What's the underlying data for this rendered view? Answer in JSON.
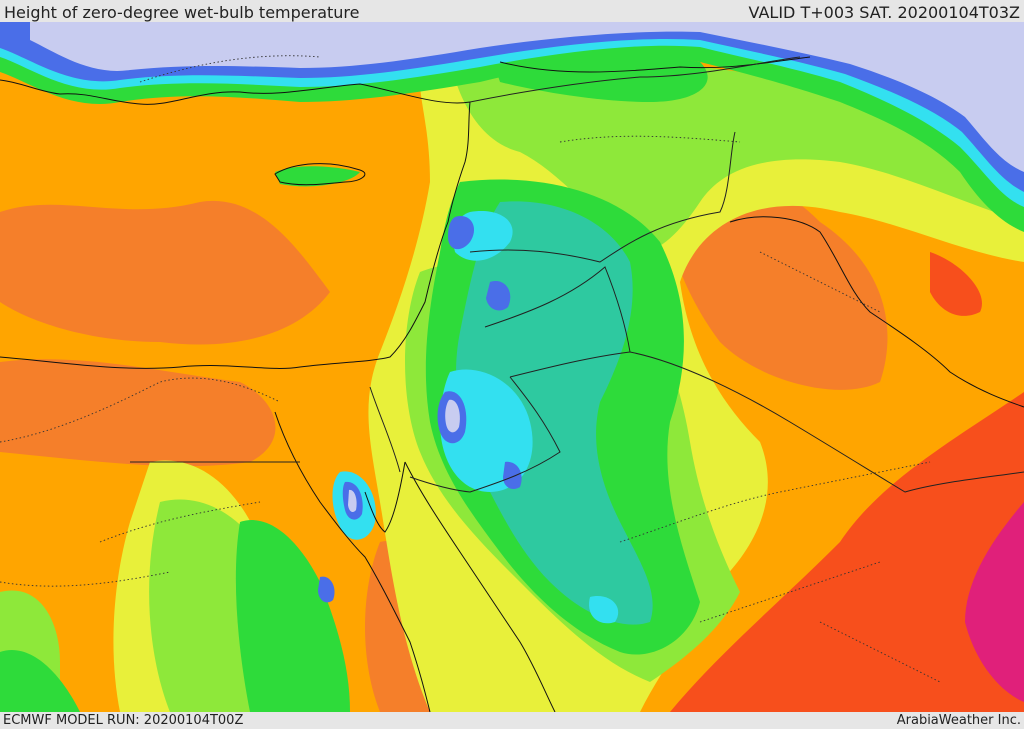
{
  "header": {
    "title": "Height of zero-degree wet-bulb temperature",
    "valid": "VALID T+003 SAT. 20200104T03Z"
  },
  "footer": {
    "model_run": "ECMWF MODEL RUN: 20200104T00Z",
    "credit": "ArabiaWeather Inc."
  },
  "palette": {
    "lavender": "#c8ccf0",
    "blue": "#4a6ee8",
    "cyan": "#33e0f0",
    "teal": "#2ec9a0",
    "green": "#2edb3a",
    "lightgreen": "#8ee83a",
    "yellow": "#e8f03a",
    "orange": "#ffa500",
    "darkorange": "#f57f2a",
    "red": "#f74f1c",
    "magenta": "#e0207a"
  }
}
